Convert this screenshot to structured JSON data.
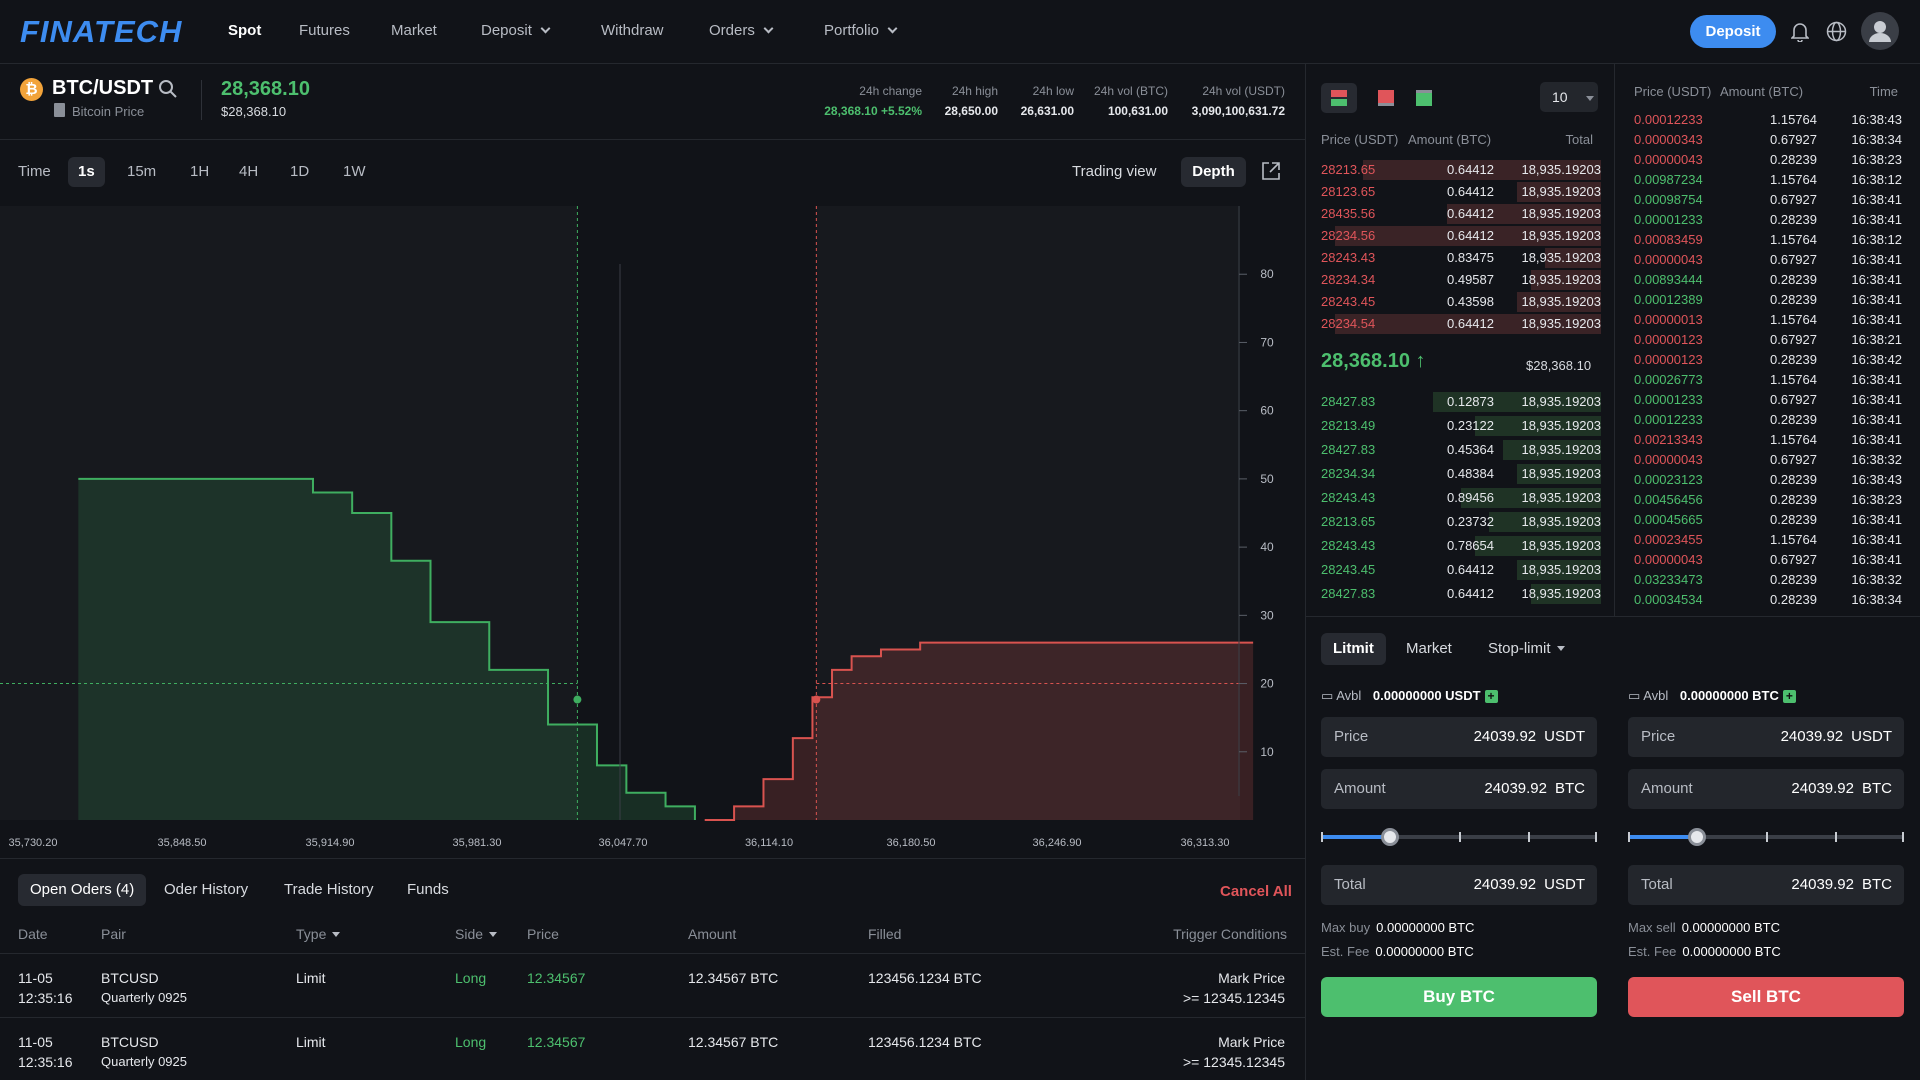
{
  "nav": {
    "logo": "FINATECH",
    "items": [
      {
        "label": "Spot",
        "active": true,
        "dropdown": false
      },
      {
        "label": "Futures",
        "active": false,
        "dropdown": false
      },
      {
        "label": "Market",
        "active": false,
        "dropdown": false
      },
      {
        "label": "Deposit",
        "active": false,
        "dropdown": true
      },
      {
        "label": "Withdraw",
        "active": false,
        "dropdown": false
      },
      {
        "label": "Orders",
        "active": false,
        "dropdown": true
      },
      {
        "label": "Portfolio",
        "active": false,
        "dropdown": true
      }
    ],
    "deposit_button": "Deposit",
    "icons": [
      "bell-icon",
      "globe-icon",
      "user-icon"
    ]
  },
  "ticker": {
    "pair": "BTC/USDT",
    "subtitle": "Bitcoin Price",
    "price": "28,368.10",
    "price_usd": "$28,368.10",
    "stats": [
      {
        "label": "24h change",
        "value": "28,368.10 +5.52%",
        "color": "#4dbf6e"
      },
      {
        "label": "24h high",
        "value": "28,650.00"
      },
      {
        "label": "24h low",
        "value": "26,631.00"
      },
      {
        "label": "24h vol (BTC)",
        "value": "100,631.00"
      },
      {
        "label": "24h vol (USDT)",
        "value": "3,090,100,631.72"
      }
    ]
  },
  "timebar": {
    "label": "Time",
    "intervals": [
      "1s",
      "15m",
      "1H",
      "4H",
      "1D",
      "1W"
    ],
    "selected": "1s",
    "trading_view": "Trading view",
    "depth": "Depth"
  },
  "chart_data": {
    "type": "area",
    "title": "",
    "x_ticks": [
      "35,730.20",
      "35,848.50",
      "35,914.90",
      "35,981.30",
      "36,047.70",
      "36,114.10",
      "36,180.50",
      "36,246.90",
      "36,313.30"
    ],
    "y_ticks": [
      80,
      70,
      60,
      50,
      40,
      30,
      20,
      10
    ],
    "ylim": [
      0,
      90
    ],
    "series": [
      {
        "color": "#3fae60",
        "x": [
          35730.2,
          35840.0,
          35850.0,
          35870.0,
          35890.0,
          35910.0,
          35940.0,
          35970.0,
          35995.0,
          36010.0,
          36030.0,
          36045.0
        ],
        "y": [
          50,
          50,
          48,
          45,
          38,
          29,
          22,
          14,
          8,
          4,
          2,
          0
        ]
      },
      {
        "color": "#d9534f",
        "x": [
          36050.0,
          36065.0,
          36080.0,
          36095.0,
          36105.0,
          36115.0,
          36125.0,
          36140.0,
          36160.0,
          36330.0
        ],
        "y": [
          0,
          2,
          6,
          12,
          18,
          22,
          24,
          25,
          26,
          26
        ]
      }
    ],
    "crosshair": {
      "bid_x": 35985.0,
      "ask_x": 36107.0,
      "y": 20
    }
  },
  "orders": {
    "tabs": [
      "Open Oders (4)",
      "Oder History",
      "Trade History",
      "Funds"
    ],
    "cancel_all": "Cancel All",
    "columns": [
      "Date",
      "Pair",
      "Type",
      "Side",
      "Price",
      "Amount",
      "Filled",
      "Trigger Conditions"
    ],
    "rows": [
      {
        "date": "11-05",
        "time": "12:35:16",
        "pair": "BTCUSD",
        "pair_sub": "Quarterly 0925",
        "type": "Limit",
        "side": "Long",
        "price": "12.34567",
        "amount": "12.34567 BTC",
        "filled": "123456.1234 BTC",
        "trigger": "Mark Price",
        "trigger_sub": ">= 12345.12345"
      },
      {
        "date": "11-05",
        "time": "12:35:16",
        "pair": "BTCUSD",
        "pair_sub": "Quarterly 0925",
        "type": "Limit",
        "side": "Long",
        "price": "12.34567",
        "amount": "12.34567 BTC",
        "filled": "123456.1234 BTC",
        "trigger": "Mark Price",
        "trigger_sub": ">= 12345.12345"
      }
    ]
  },
  "orderbook": {
    "depth_select": "10",
    "headers": [
      "Price (USDT)",
      "Amount (BTC)",
      "Total"
    ],
    "asks": [
      {
        "price": "28213.65",
        "amount": "0.64412",
        "total": "18,935.19203",
        "depth": 0.85
      },
      {
        "price": "28123.65",
        "amount": "0.64412",
        "total": "18,935.19203",
        "depth": 0.3
      },
      {
        "price": "28435.56",
        "amount": "0.64412",
        "total": "18,935.19203",
        "depth": 0.55
      },
      {
        "price": "28234.56",
        "amount": "0.64412",
        "total": "18,935.19203",
        "depth": 0.95
      },
      {
        "price": "28243.43",
        "amount": "0.83475",
        "total": "18,935.19203",
        "depth": 0.2
      },
      {
        "price": "28234.34",
        "amount": "0.49587",
        "total": "18,935.19203",
        "depth": 0.25
      },
      {
        "price": "28243.45",
        "amount": "0.43598",
        "total": "18,935.19203",
        "depth": 0.3
      },
      {
        "price": "28234.54",
        "amount": "0.64412",
        "total": "18,935.19203",
        "depth": 0.95
      }
    ],
    "mid_price": "28,368.10",
    "mid_usd": "$28,368.10",
    "bids": [
      {
        "price": "28427.83",
        "amount": "0.12873",
        "total": "18,935.19203",
        "depth": 0.6
      },
      {
        "price": "28213.49",
        "amount": "0.23122",
        "total": "18,935.19203",
        "depth": 0.45
      },
      {
        "price": "28427.83",
        "amount": "0.45364",
        "total": "18,935.19203",
        "depth": 0.35
      },
      {
        "price": "28234.34",
        "amount": "0.48384",
        "total": "18,935.19203",
        "depth": 0.3
      },
      {
        "price": "28243.43",
        "amount": "0.89456",
        "total": "18,935.19203",
        "depth": 0.5
      },
      {
        "price": "28213.65",
        "amount": "0.23732",
        "total": "18,935.19203",
        "depth": 0.4
      },
      {
        "price": "28243.43",
        "amount": "0.78654",
        "total": "18,935.19203",
        "depth": 0.45
      },
      {
        "price": "28243.45",
        "amount": "0.64412",
        "total": "18,935.19203",
        "depth": 0.3
      },
      {
        "price": "28427.83",
        "amount": "0.64412",
        "total": "18,935.19203",
        "depth": 0.25
      }
    ]
  },
  "trades": {
    "headers": [
      "Price (USDT)",
      "Amount (BTC)",
      "Time"
    ],
    "rows": [
      {
        "price": "0.00012233",
        "side": "sell",
        "amount": "1.15764",
        "time": "16:38:43"
      },
      {
        "price": "0.00000343",
        "side": "sell",
        "amount": "0.67927",
        "time": "16:38:34"
      },
      {
        "price": "0.00000043",
        "side": "sell",
        "amount": "0.28239",
        "time": "16:38:23"
      },
      {
        "price": "0.00987234",
        "side": "buy",
        "amount": "1.15764",
        "time": "16:38:12"
      },
      {
        "price": "0.00098754",
        "side": "buy",
        "amount": "0.67927",
        "time": "16:38:41"
      },
      {
        "price": "0.00001233",
        "side": "buy",
        "amount": "0.28239",
        "time": "16:38:41"
      },
      {
        "price": "0.00083459",
        "side": "sell",
        "amount": "1.15764",
        "time": "16:38:12"
      },
      {
        "price": "0.00000043",
        "side": "sell",
        "amount": "0.67927",
        "time": "16:38:41"
      },
      {
        "price": "0.00893444",
        "side": "buy",
        "amount": "0.28239",
        "time": "16:38:41"
      },
      {
        "price": "0.00012389",
        "side": "buy",
        "amount": "0.28239",
        "time": "16:38:41"
      },
      {
        "price": "0.00000013",
        "side": "sell",
        "amount": "1.15764",
        "time": "16:38:41"
      },
      {
        "price": "0.00000123",
        "side": "sell",
        "amount": "0.67927",
        "time": "16:38:21"
      },
      {
        "price": "0.00000123",
        "side": "sell",
        "amount": "0.28239",
        "time": "16:38:42"
      },
      {
        "price": "0.00026773",
        "side": "buy",
        "amount": "1.15764",
        "time": "16:38:41"
      },
      {
        "price": "0.00001233",
        "side": "buy",
        "amount": "0.67927",
        "time": "16:38:41"
      },
      {
        "price": "0.00012233",
        "side": "buy",
        "amount": "0.28239",
        "time": "16:38:41"
      },
      {
        "price": "0.00213343",
        "side": "sell",
        "amount": "1.15764",
        "time": "16:38:41"
      },
      {
        "price": "0.00000043",
        "side": "sell",
        "amount": "0.67927",
        "time": "16:38:32"
      },
      {
        "price": "0.00023123",
        "side": "buy",
        "amount": "0.28239",
        "time": "16:38:43"
      },
      {
        "price": "0.00456456",
        "side": "buy",
        "amount": "0.28239",
        "time": "16:38:23"
      },
      {
        "price": "0.00045665",
        "side": "buy",
        "amount": "0.28239",
        "time": "16:38:41"
      },
      {
        "price": "0.00023455",
        "side": "sell",
        "amount": "1.15764",
        "time": "16:38:41"
      },
      {
        "price": "0.00000043",
        "side": "sell",
        "amount": "0.67927",
        "time": "16:38:41"
      },
      {
        "price": "0.03233473",
        "side": "buy",
        "amount": "0.28239",
        "time": "16:38:32"
      },
      {
        "price": "0.00034534",
        "side": "buy",
        "amount": "0.28239",
        "time": "16:38:34"
      }
    ]
  },
  "form": {
    "tabs": [
      "Litmit",
      "Market",
      "Stop-limit"
    ],
    "buy": {
      "avbl_label": "Avbl",
      "avbl": "0.00000000 USDT",
      "price_label": "Price",
      "price": "24039.92",
      "price_unit": "USDT",
      "amount_label": "Amount",
      "amount": "24039.92",
      "amount_unit": "BTC",
      "slider_level": 0.25,
      "total_label": "Total",
      "total": "24039.92",
      "total_unit": "USDT",
      "max_label": "Max buy",
      "max": "0.00000000 BTC",
      "fee_label": "Est. Fee",
      "fee": "0.00000000 BTC",
      "button": "Buy BTC"
    },
    "sell": {
      "avbl_label": "Avbl",
      "avbl": "0.00000000 BTC",
      "price_label": "Price",
      "price": "24039.92",
      "price_unit": "USDT",
      "amount_label": "Amount",
      "amount": "24039.92",
      "amount_unit": "BTC",
      "slider_level": 0.25,
      "total_label": "Total",
      "total": "24039.92",
      "total_unit": "BTC",
      "max_label": "Max sell",
      "max": "0.00000000 BTC",
      "fee_label": "Est. Fee",
      "fee": "0.00000000 BTC",
      "button": "Sell BTC"
    }
  },
  "colors": {
    "accent": "#3d8cf0",
    "buy": "#4dbf6e",
    "sell": "#e0555a",
    "bg": "#111318",
    "panel": "#23262c"
  }
}
